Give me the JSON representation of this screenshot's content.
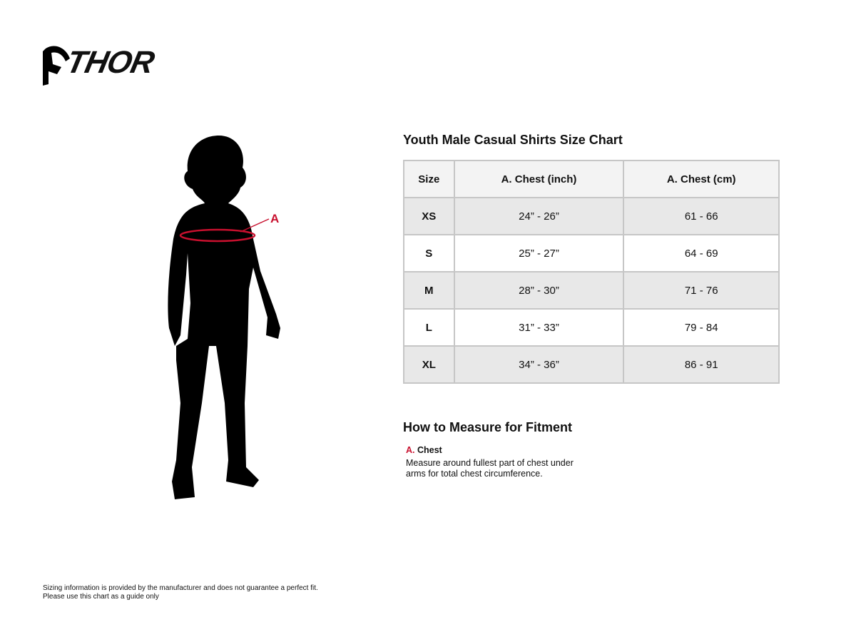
{
  "brand": {
    "logo_text": "THOR"
  },
  "chart": {
    "title": "Youth Male Casual Shirts Size Chart",
    "headers": [
      "Size",
      "A. Chest (inch)",
      "A. Chest (cm)"
    ],
    "rows": [
      [
        "XS",
        "24” - 26”",
        "61 - 66"
      ],
      [
        "S",
        "25” - 27”",
        "64 - 69"
      ],
      [
        "M",
        "28” - 30”",
        "71 - 76"
      ],
      [
        "L",
        "31” - 33”",
        "79 - 84"
      ],
      [
        "XL",
        "34” - 36”",
        "86 - 91"
      ]
    ]
  },
  "figure": {
    "marker": "A",
    "accent": "#c8102e"
  },
  "measure": {
    "title": "How to Measure for Fitment",
    "letter": "A.",
    "label": "Chest",
    "description": "Measure around fullest part of chest under arms for total chest circumference."
  },
  "footer": {
    "line1": "Sizing information is provided by the manufacturer and does not guarantee a perfect fit.",
    "line2": "Please use this chart as a guide only"
  }
}
